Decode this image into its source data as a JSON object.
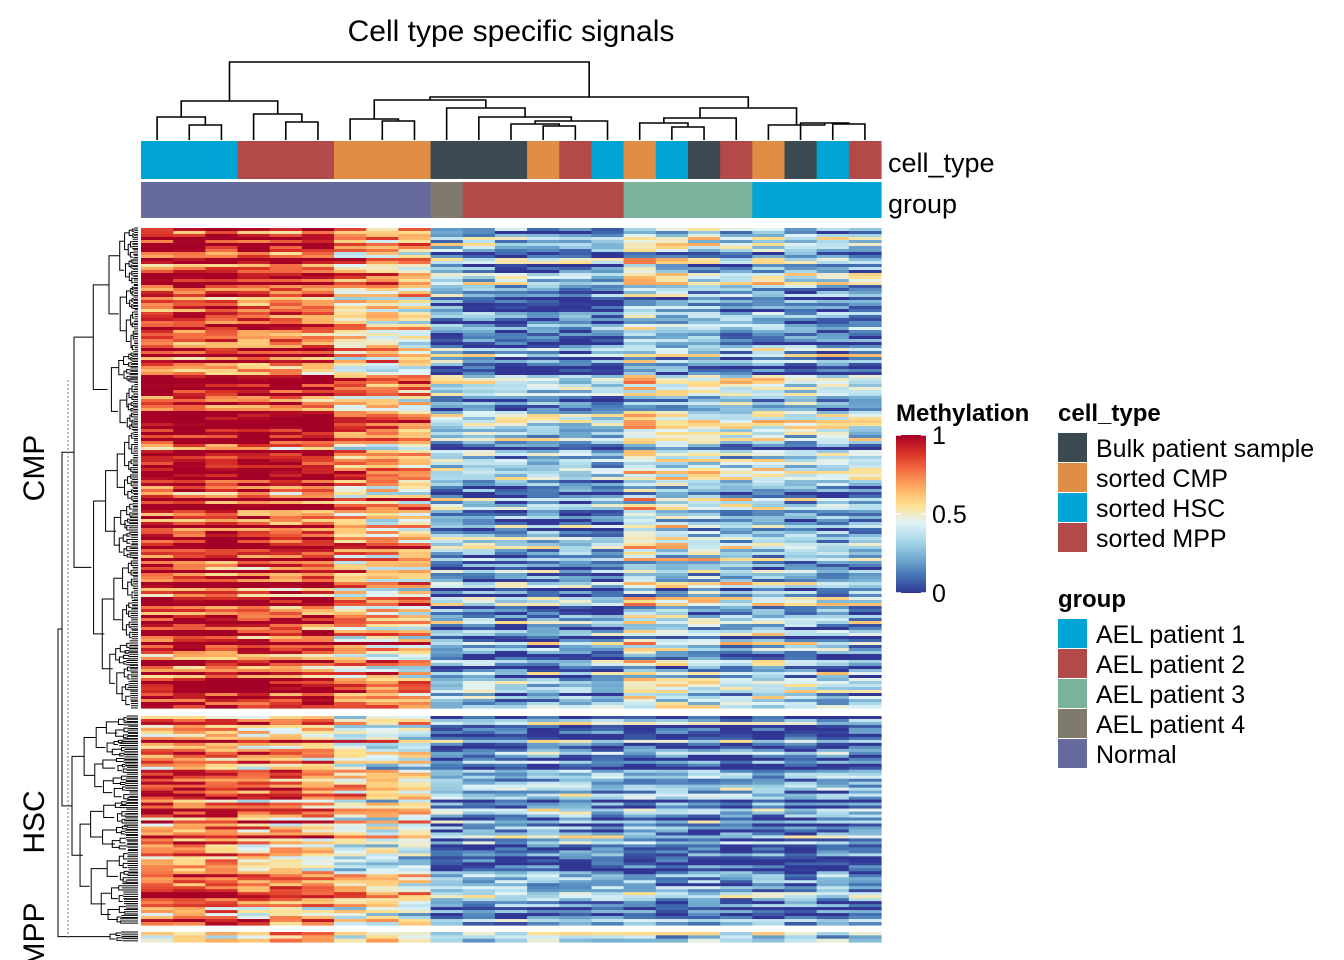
{
  "chart_data": {
    "type": "heatmap",
    "title": "Cell type specific signals",
    "columns": [
      {
        "cell_type": "sorted HSC",
        "group": "Normal"
      },
      {
        "cell_type": "sorted HSC",
        "group": "Normal"
      },
      {
        "cell_type": "sorted HSC",
        "group": "Normal"
      },
      {
        "cell_type": "sorted MPP",
        "group": "Normal"
      },
      {
        "cell_type": "sorted MPP",
        "group": "Normal"
      },
      {
        "cell_type": "sorted MPP",
        "group": "Normal"
      },
      {
        "cell_type": "sorted CMP",
        "group": "Normal"
      },
      {
        "cell_type": "sorted CMP",
        "group": "Normal"
      },
      {
        "cell_type": "sorted CMP",
        "group": "Normal"
      },
      {
        "cell_type": "Bulk patient sample",
        "group": "AEL patient 4"
      },
      {
        "cell_type": "Bulk patient sample",
        "group": "AEL patient 2"
      },
      {
        "cell_type": "Bulk patient sample",
        "group": "AEL patient 2"
      },
      {
        "cell_type": "sorted CMP",
        "group": "AEL patient 2"
      },
      {
        "cell_type": "sorted MPP",
        "group": "AEL patient 2"
      },
      {
        "cell_type": "sorted HSC",
        "group": "AEL patient 2"
      },
      {
        "cell_type": "sorted CMP",
        "group": "AEL patient 3"
      },
      {
        "cell_type": "sorted HSC",
        "group": "AEL patient 3"
      },
      {
        "cell_type": "Bulk patient sample",
        "group": "AEL patient 3"
      },
      {
        "cell_type": "sorted MPP",
        "group": "AEL patient 3"
      },
      {
        "cell_type": "sorted CMP",
        "group": "AEL patient 1"
      },
      {
        "cell_type": "Bulk patient sample",
        "group": "AEL patient 1"
      },
      {
        "cell_type": "sorted HSC",
        "group": "AEL patient 1"
      },
      {
        "cell_type": "sorted MPP",
        "group": "AEL patient 1"
      }
    ],
    "row_splits": [
      {
        "label": "CMP",
        "mean_profile": [
          0.88,
          0.9,
          0.88,
          0.86,
          0.85,
          0.84,
          0.66,
          0.62,
          0.6,
          0.24,
          0.22,
          0.2,
          0.2,
          0.18,
          0.18,
          0.42,
          0.36,
          0.34,
          0.3,
          0.32,
          0.28,
          0.26,
          0.24
        ]
      },
      {
        "label": "HSC",
        "mean_profile": [
          0.8,
          0.82,
          0.8,
          0.72,
          0.7,
          0.68,
          0.56,
          0.5,
          0.5,
          0.2,
          0.2,
          0.2,
          0.22,
          0.22,
          0.2,
          0.18,
          0.18,
          0.18,
          0.16,
          0.16,
          0.16,
          0.16,
          0.16
        ]
      },
      {
        "label": "MPP",
        "mean_profile": [
          0.5,
          0.5,
          0.5,
          0.6,
          0.6,
          0.6,
          0.5,
          0.5,
          0.5,
          0.3,
          0.3,
          0.3,
          0.3,
          0.3,
          0.3,
          0.3,
          0.3,
          0.3,
          0.3,
          0.3,
          0.3,
          0.3,
          0.3
        ]
      }
    ],
    "annotation_labels": {
      "cell_type": "cell_type",
      "group": "group"
    },
    "colorbar": {
      "title": "Methylation",
      "min": 0,
      "max": 1,
      "ticks": [
        "0",
        "0.5",
        "1"
      ],
      "stops": [
        "#313695",
        "#4575b4",
        "#74add1",
        "#abd9e9",
        "#e0f3f8",
        "#fee090",
        "#fdae61",
        "#f46d43",
        "#d73027",
        "#a50026"
      ]
    },
    "legends": [
      {
        "title": "cell_type",
        "items": [
          {
            "label": "Bulk patient sample",
            "color": "#3a4a50"
          },
          {
            "label": "sorted CMP",
            "color": "#e08e45"
          },
          {
            "label": "sorted HSC",
            "color": "#00a5d6"
          },
          {
            "label": "sorted MPP",
            "color": "#b24a4a"
          }
        ]
      },
      {
        "title": "group",
        "items": [
          {
            "label": "AEL patient 1",
            "color": "#00a5d6"
          },
          {
            "label": "AEL patient 2",
            "color": "#b24a4a"
          },
          {
            "label": "AEL patient 3",
            "color": "#7bb29a"
          },
          {
            "label": "AEL patient 4",
            "color": "#7f7a6d"
          },
          {
            "label": "Normal",
            "color": "#676a9c"
          }
        ]
      }
    ]
  }
}
